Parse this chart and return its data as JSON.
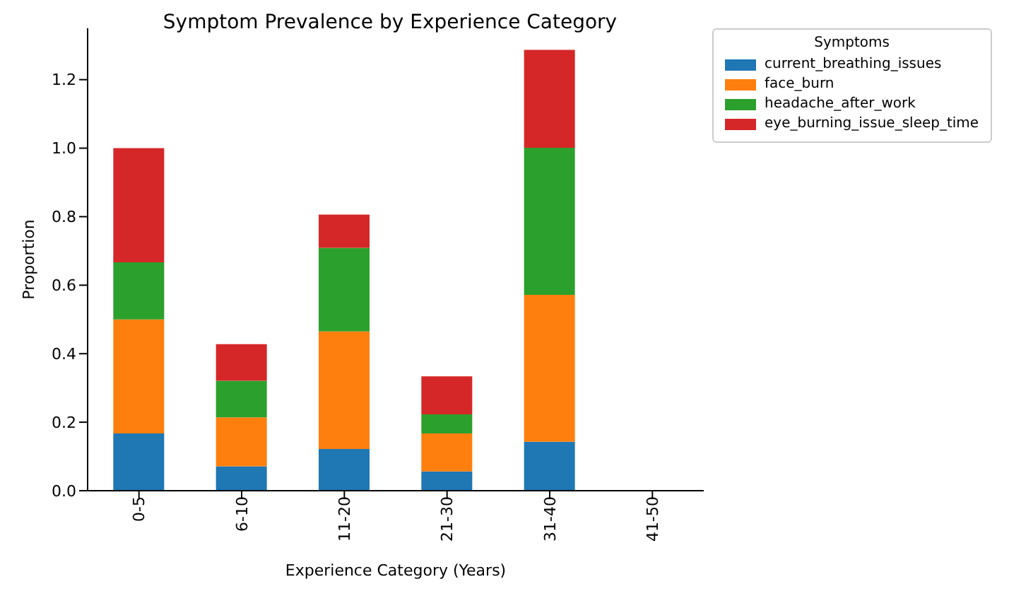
{
  "chart_data": {
    "type": "bar",
    "title": "Symptom Prevalence by Experience Category",
    "xlabel": "Experience Category (Years)",
    "ylabel": "Proportion",
    "legend_title": "Symptoms",
    "stacked": true,
    "legend": "top right",
    "grid": false,
    "categories": [
      "0-5",
      "6-10",
      "11-20",
      "21-30",
      "31-40",
      "41-50"
    ],
    "series": [
      {
        "name": "current_breathing_issues",
        "color": "#1f77b4",
        "values": [
          0.167,
          0.071,
          0.122,
          0.056,
          0.143,
          0
        ]
      },
      {
        "name": "face_burn",
        "color": "#ff7f0e",
        "values": [
          0.333,
          0.143,
          0.343,
          0.111,
          0.429,
          0
        ]
      },
      {
        "name": "headache_after_work",
        "color": "#2ca02c",
        "values": [
          0.167,
          0.107,
          0.244,
          0.056,
          0.429,
          0
        ]
      },
      {
        "name": "eye_burning_issue_sleep_time",
        "color": "#d62728",
        "values": [
          0.333,
          0.107,
          0.097,
          0.111,
          0.286,
          0
        ]
      }
    ],
    "ylim": [
      0,
      1.35
    ],
    "yticks": [
      {
        "value": 0,
        "label": "0.0"
      },
      {
        "value": 0.2,
        "label": "0.2"
      },
      {
        "value": 0.4,
        "label": "0.4"
      },
      {
        "value": 0.6,
        "label": "0.6"
      },
      {
        "value": 0.8,
        "label": "0.8"
      },
      {
        "value": 1,
        "label": "1.0"
      },
      {
        "value": 1.2,
        "label": "1.2"
      }
    ]
  }
}
